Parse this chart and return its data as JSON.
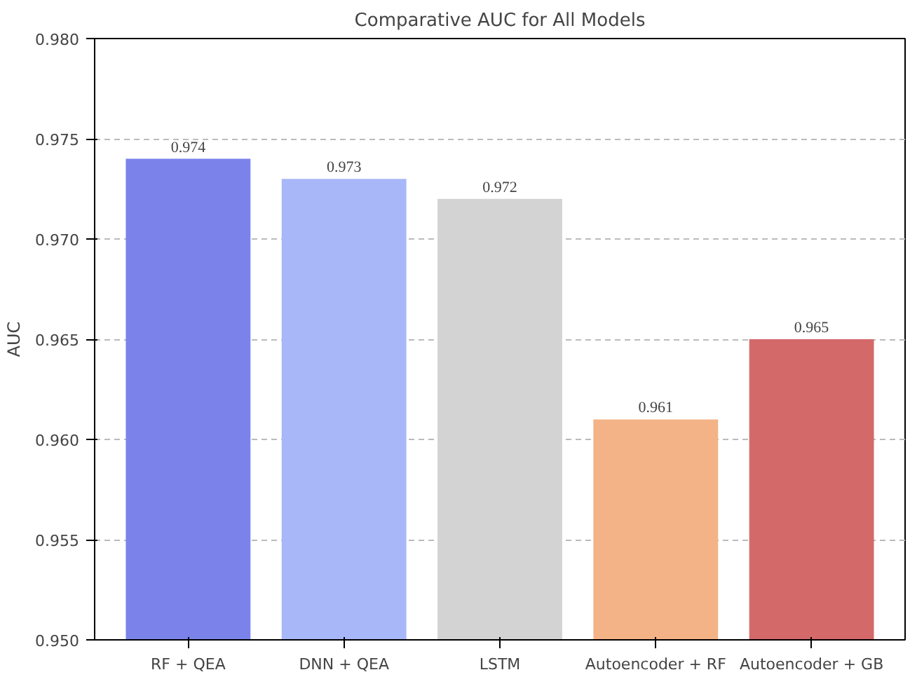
{
  "chart_data": {
    "type": "bar",
    "title": "Comparative AUC for All Models",
    "ylabel": "AUC",
    "categories": [
      "RF + QEA",
      "DNN + QEA",
      "LSTM",
      "Autoencoder + RF",
      "Autoencoder + GB"
    ],
    "values": [
      0.974,
      0.973,
      0.972,
      0.961,
      0.965
    ],
    "colors": [
      "#7b83eb",
      "#a8b7f8",
      "#d3d3d3",
      "#f3b387",
      "#d4696a"
    ],
    "ylim": [
      0.95,
      0.98
    ],
    "yticks": [
      {
        "value": 0.95,
        "label": "0.950"
      },
      {
        "value": 0.955,
        "label": "0.955"
      },
      {
        "value": 0.96,
        "label": "0.960"
      },
      {
        "value": 0.965,
        "label": "0.965"
      },
      {
        "value": 0.97,
        "label": "0.970"
      },
      {
        "value": 0.975,
        "label": "0.975"
      },
      {
        "value": 0.98,
        "label": "0.980"
      }
    ],
    "grid": "y",
    "line_style": "dashed",
    "data_labels": true
  }
}
